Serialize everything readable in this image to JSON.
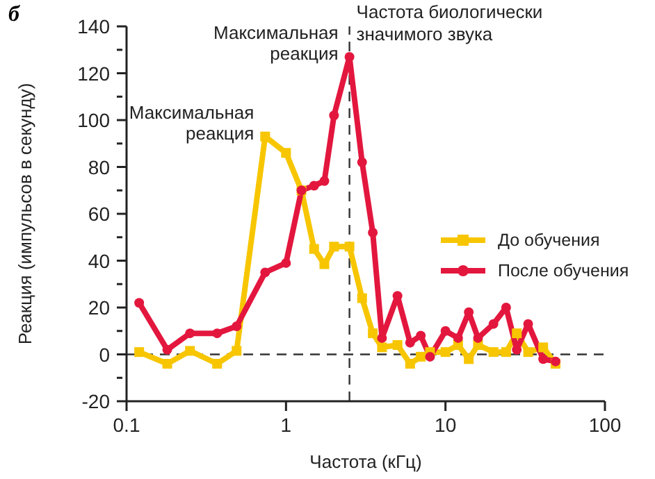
{
  "chart_data": {
    "type": "line",
    "xlabel": "Частота (кГц)",
    "ylabel": "Реакция (импульсов в секунду)",
    "log": "x",
    "xlim": [
      0.1,
      100
    ],
    "xticks": [
      0.1,
      1,
      10,
      100
    ],
    "ylim": [
      -20,
      140
    ],
    "yticks": [
      -20,
      {
        "value": -10,
        "label": null
      },
      0,
      {
        "value": 10,
        "label": null
      },
      20,
      {
        "value": 30,
        "label": null
      },
      40,
      {
        "value": 50,
        "label": null
      },
      60,
      {
        "value": 70,
        "label": null
      },
      80,
      {
        "value": 90,
        "label": null
      },
      100,
      {
        "value": 110,
        "label": null
      },
      120,
      {
        "value": 130,
        "label": null
      },
      140
    ],
    "legend": "right",
    "line_style": "solid",
    "series": [
      {
        "name": "До обучения",
        "color": "#f7c600",
        "marker": "square",
        "x": [
          0.12,
          0.18,
          0.25,
          0.37,
          0.49,
          0.74,
          1.0,
          1.25,
          1.5,
          1.74,
          2.0,
          2.5,
          3.0,
          3.5,
          4,
          5,
          6,
          7,
          8,
          10,
          12,
          14,
          16,
          20,
          24,
          28,
          33,
          41,
          49
        ],
        "values": [
          1,
          -4,
          1.5,
          -4,
          1.5,
          93,
          86,
          70,
          45,
          38.5,
          46,
          46,
          24,
          9,
          3,
          4,
          -4,
          -1,
          1,
          1,
          4,
          -2,
          4,
          1,
          1,
          9,
          1,
          3,
          -4
        ]
      },
      {
        "name": "После обучения",
        "color": "#e3173e",
        "marker": "circle",
        "x": [
          0.12,
          0.18,
          0.25,
          0.37,
          0.49,
          0.74,
          1.0,
          1.25,
          1.5,
          1.74,
          2.0,
          2.5,
          3.0,
          3.5,
          4,
          5,
          6,
          7,
          8,
          10,
          12,
          14,
          16,
          20,
          24,
          28,
          33,
          41,
          49
        ],
        "values": [
          22,
          2,
          9,
          9,
          12,
          35,
          39,
          70,
          72,
          74,
          102,
          127,
          82,
          52,
          7,
          25,
          5,
          8,
          -1,
          10,
          7,
          18,
          7,
          13,
          20,
          2,
          13,
          -2,
          -3
        ]
      }
    ],
    "ref_lines": [
      {
        "axis": "y",
        "value": 0,
        "line_style": "dashed",
        "color": "#333333"
      },
      {
        "axis": "x",
        "value": 2.5,
        "line_style": "dashed",
        "color": "#333333",
        "label": "Частота биологически значимого звука"
      }
    ],
    "annotations": [
      "б",
      {
        "text": "Максимальная реакция",
        "x": 0.74,
        "y": 93
      },
      {
        "text": "Максимальная реакция",
        "x": 2.5,
        "y": 127
      }
    ]
  }
}
